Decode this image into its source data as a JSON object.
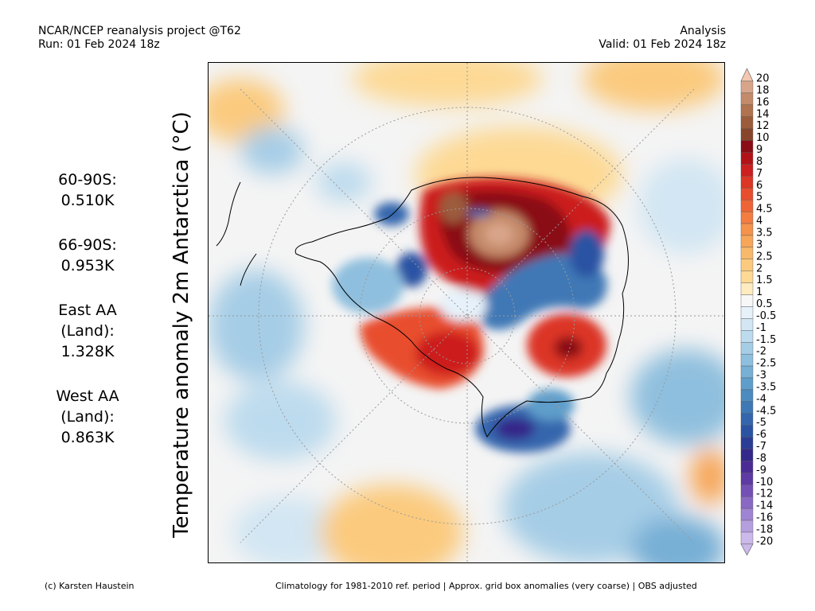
{
  "header": {
    "left_line1": "NCAR/NCEP reanalysis project @T62",
    "left_line2": "Run: 01 Feb 2024 18z",
    "right_line1": "Analysis",
    "right_line2": "Valid: 01 Feb 2024 18z"
  },
  "stats": [
    {
      "label1": "60-90S:",
      "label2": "",
      "value": "0.510K"
    },
    {
      "label1": "66-90S:",
      "label2": "",
      "value": "0.953K"
    },
    {
      "label1": "East AA",
      "label2": "(Land):",
      "value": "1.328K"
    },
    {
      "label1": "West AA",
      "label2": "(Land):",
      "value": "0.863K"
    }
  ],
  "axis_title": "Temperature anomaly 2m Antarctica (°C)",
  "colorbar": {
    "labels": [
      "20",
      "18",
      "16",
      "14",
      "12",
      "10",
      "9",
      "8",
      "7",
      "6",
      "5",
      "4.5",
      "4",
      "3.5",
      "3",
      "2.5",
      "2",
      "1.5",
      "1",
      "0.5",
      "-0.5",
      "-1",
      "-1.5",
      "-2",
      "-2.5",
      "-3",
      "-3.5",
      "-4",
      "-4.5",
      "-5",
      "-6",
      "-7",
      "-8",
      "-9",
      "-10",
      "-12",
      "-14",
      "-16",
      "-18",
      "-20"
    ],
    "colors": [
      "#f3c7b0",
      "#d9a58a",
      "#c48a6a",
      "#b0724f",
      "#9c5c3c",
      "#87462b",
      "#8a0c14",
      "#b01218",
      "#cc1f1f",
      "#dc3626",
      "#e84d2e",
      "#ef6436",
      "#f37c40",
      "#f5924c",
      "#f7a659",
      "#f9b96b",
      "#fbca7e",
      "#fdd994",
      "#feebc0",
      "#f7f7f7",
      "#e6f1f9",
      "#d2e6f3",
      "#bddbee",
      "#a6cde6",
      "#8fbfde",
      "#77afd5",
      "#5f9ecb",
      "#4c8bc0",
      "#3f78b6",
      "#3566ad",
      "#2b53a3",
      "#2a3e96",
      "#34288a",
      "#4b2c95",
      "#5e3aa4",
      "#7450b5",
      "#8a69c5",
      "#a084d3",
      "#b59fdf",
      "#cab9ea"
    ]
  },
  "footer": {
    "left": "(c) Karsten Haustein",
    "right": "Climatology for 1981-2010 ref. period | Approx. grid box anomalies (very coarse) | OBS adjusted"
  }
}
